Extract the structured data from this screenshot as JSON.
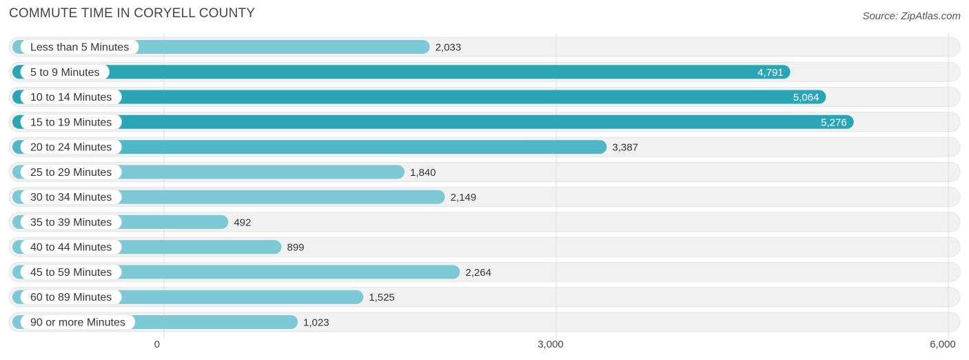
{
  "header": {
    "title": "COMMUTE TIME IN CORYELL COUNTY",
    "source": "Source: ZipAtlas.com"
  },
  "colors": {
    "bar_strong": "#2aa5b6",
    "bar_light": "#7cc8d4",
    "track": "#f1f1f1",
    "grid": "#dddddd",
    "label_text": "#333333",
    "value_text_inside": "#ffffff",
    "value_text_outside": "#333333"
  },
  "chart_data": {
    "type": "bar",
    "orientation": "horizontal",
    "title": "COMMUTE TIME IN CORYELL COUNTY",
    "categories": [
      "Less than 5 Minutes",
      "5 to 9 Minutes",
      "10 to 14 Minutes",
      "15 to 19 Minutes",
      "20 to 24 Minutes",
      "25 to 29 Minutes",
      "30 to 34 Minutes",
      "35 to 39 Minutes",
      "40 to 44 Minutes",
      "45 to 59 Minutes",
      "60 to 89 Minutes",
      "90 or more Minutes"
    ],
    "values": [
      2033,
      4791,
      5064,
      5276,
      3387,
      1840,
      2149,
      492,
      899,
      2264,
      1525,
      1023
    ],
    "value_labels": [
      "2,033",
      "4,791",
      "5,064",
      "5,276",
      "3,387",
      "1,840",
      "2,149",
      "492",
      "899",
      "2,264",
      "1,525",
      "1,023"
    ],
    "xlim": [
      0,
      6000
    ],
    "x_ticks": [
      0,
      3000,
      6000
    ],
    "x_tick_labels": [
      "0",
      "3,000",
      "6,000"
    ],
    "grid": true,
    "legend": "none"
  }
}
